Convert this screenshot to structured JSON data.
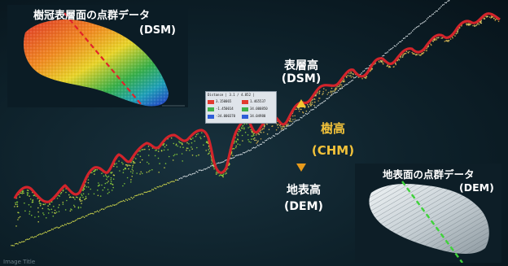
{
  "dsm_inset": {
    "title": "樹冠表層面の点群データ",
    "subtitle": "(DSM)"
  },
  "dem_inset": {
    "title": "地表面の点群データ",
    "subtitle": "(DEM)"
  },
  "dsm_label": {
    "line1": "表層高",
    "line2": "(DSM)"
  },
  "chm_label": {
    "line1": "樹高",
    "line2": "(CHM)"
  },
  "dem_label": {
    "line1": "地表高",
    "line2": "(DEM)"
  },
  "legend": {
    "title": "Distance  | 3.1 / 4.852 |",
    "rows": [
      {
        "c1": "#e23a2e",
        "t1": "3.150065",
        "c2": "#e23a2e",
        "t2": "1.465537"
      },
      {
        "c1": "#3fb04a",
        "t1": "-1.450014",
        "c2": "#3fb04a",
        "t2": "34.000850"
      },
      {
        "c1": "#2e5ed8",
        "t1": "-34.000370",
        "c2": "#2e5ed8",
        "t2": "34.04980"
      }
    ]
  },
  "watermark": "Image Title",
  "colors": {
    "dsm_line": "#d3242b",
    "chm_arrow": "#f0b81f",
    "chm_text": "#f2c23a",
    "dem_points": "#cfd8dc",
    "dem_diagonal": "#3fd23a",
    "dsm_diagonal": "#e0232a"
  }
}
